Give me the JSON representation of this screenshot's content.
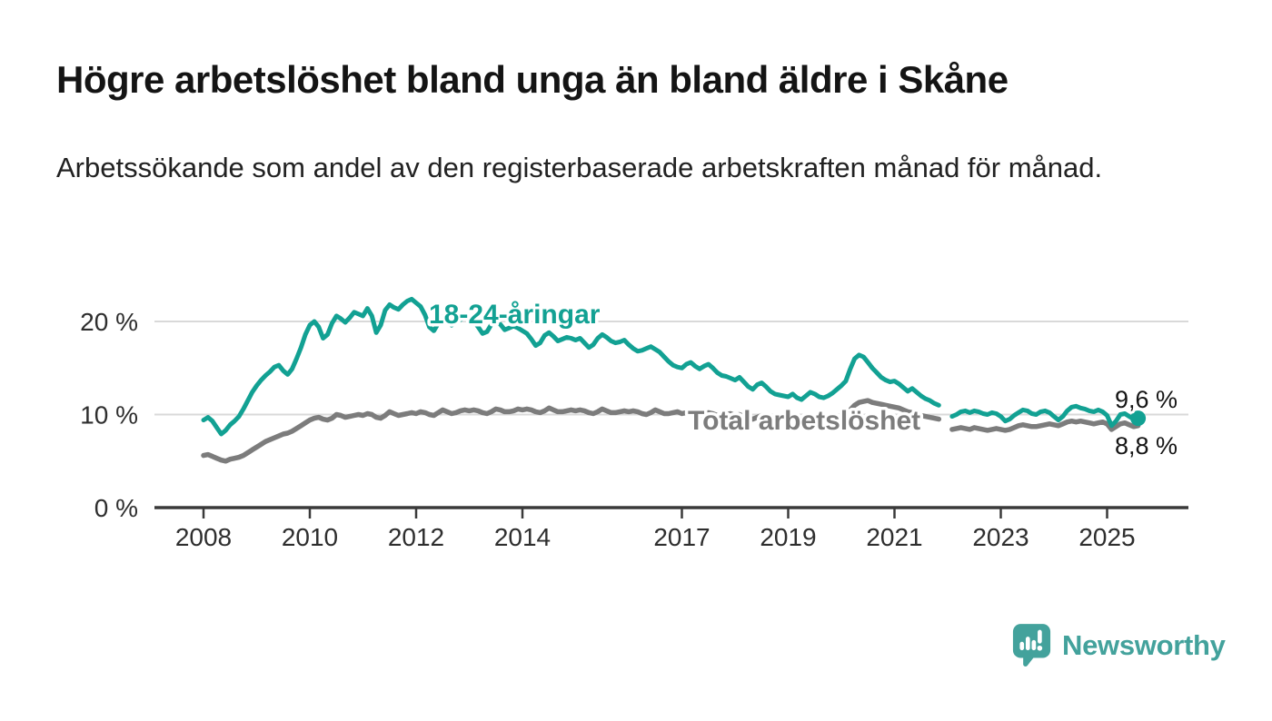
{
  "page": {
    "title": "Högre arbetslöshet bland unga än bland äldre i Skåne",
    "subtitle": "Arbetssökande som andel av den registerbaserade arbetskraften månad för månad."
  },
  "brand": {
    "name": "Newsworthy",
    "logo_icon": "bar-chart-speech-bubble-icon",
    "color": "#43a29c"
  },
  "colors": {
    "youth_line": "#12a193",
    "total_line": "#7c7c7c",
    "axis": "#3a3a3a",
    "gridline": "#d9d9d9",
    "tick_text": "#2e2e2e",
    "end_label_text": "#141414"
  },
  "chart_data": {
    "type": "line",
    "title": "Högre arbetslöshet bland unga än bland äldre i Skåne",
    "subtitle": "Arbetssökande som andel av den registerbaserade arbetskraften månad för månad.",
    "x_unit": "month",
    "x_start": "2008-01",
    "x_end": "2025-08",
    "frequency": "monthly",
    "ylim": [
      0,
      25
    ],
    "grid": true,
    "legend_position": "inline-labels",
    "y_axis": {
      "ticks": [
        {
          "label": "0 %",
          "value": 0
        },
        {
          "label": "10 %",
          "value": 10
        },
        {
          "label": "20 %",
          "value": 20
        }
      ]
    },
    "x_axis": {
      "ticks": [
        {
          "label": "2008",
          "year": 2008
        },
        {
          "label": "2010",
          "year": 2010
        },
        {
          "label": "2012",
          "year": 2012
        },
        {
          "label": "2014",
          "year": 2014
        },
        {
          "label": "2017",
          "year": 2017
        },
        {
          "label": "2019",
          "year": 2019
        },
        {
          "label": "2021",
          "year": 2021
        },
        {
          "label": "2023",
          "year": 2023
        },
        {
          "label": "2025",
          "year": 2025
        }
      ]
    },
    "series": [
      {
        "name": "Total arbetslöshet",
        "color": "#7c7c7c",
        "line_width": 5.5,
        "end_label": "8,8 %",
        "end_dot": false,
        "values": [
          5.6,
          5.7,
          5.5,
          5.3,
          5.1,
          5.0,
          5.2,
          5.3,
          5.4,
          5.6,
          5.9,
          6.2,
          6.5,
          6.8,
          7.1,
          7.3,
          7.5,
          7.7,
          7.9,
          8.0,
          8.2,
          8.5,
          8.8,
          9.1,
          9.4,
          9.6,
          9.7,
          9.5,
          9.4,
          9.6,
          10.0,
          9.9,
          9.7,
          9.8,
          9.9,
          10.0,
          9.9,
          10.1,
          10.0,
          9.7,
          9.6,
          9.9,
          10.3,
          10.1,
          9.9,
          10.0,
          10.1,
          10.2,
          10.1,
          10.3,
          10.2,
          10.0,
          9.9,
          10.2,
          10.5,
          10.3,
          10.1,
          10.2,
          10.4,
          10.5,
          10.4,
          10.5,
          10.4,
          10.2,
          10.1,
          10.3,
          10.6,
          10.5,
          10.3,
          10.3,
          10.4,
          10.6,
          10.5,
          10.6,
          10.5,
          10.3,
          10.2,
          10.4,
          10.7,
          10.5,
          10.3,
          10.3,
          10.4,
          10.5,
          10.4,
          10.5,
          10.4,
          10.2,
          10.1,
          10.3,
          10.6,
          10.4,
          10.2,
          10.2,
          10.3,
          10.4,
          10.3,
          10.4,
          10.3,
          10.1,
          10.0,
          10.2,
          10.5,
          10.3,
          10.1,
          10.1,
          10.2,
          10.3,
          10.1,
          10.2,
          10.1,
          9.9,
          9.8,
          10.0,
          10.2,
          10.1,
          9.9,
          9.9,
          10.0,
          10.1,
          9.9,
          10.0,
          9.8,
          9.6,
          9.5,
          9.7,
          9.9,
          9.8,
          9.6,
          9.5,
          9.6,
          9.7,
          9.5,
          9.6,
          9.4,
          9.3,
          9.2,
          9.4,
          9.6,
          9.5,
          9.4,
          9.5,
          9.6,
          9.8,
          9.9,
          10.0,
          10.5,
          11.0,
          11.3,
          11.4,
          11.5,
          11.3,
          11.2,
          11.1,
          11.0,
          10.9,
          10.8,
          10.7,
          10.5,
          10.3,
          10.2,
          10.0,
          9.9,
          9.8,
          9.7,
          9.6,
          9.5,
          null,
          null,
          8.4,
          8.5,
          8.6,
          8.5,
          8.4,
          8.6,
          8.5,
          8.4,
          8.3,
          8.4,
          8.5,
          8.4,
          8.3,
          8.4,
          8.6,
          8.8,
          8.9,
          8.8,
          8.7,
          8.7,
          8.8,
          8.9,
          9.0,
          8.9,
          8.8,
          9.0,
          9.2,
          9.3,
          9.2,
          9.3,
          9.2,
          9.1,
          9.0,
          9.1,
          9.2,
          9.0,
          8.4,
          8.7,
          9.0,
          9.1,
          8.9,
          8.7,
          8.8
        ]
      },
      {
        "name": "18-24-åringar",
        "color": "#12a193",
        "line_width": 5,
        "end_label": "9,6 %",
        "end_dot": true,
        "values": [
          9.4,
          9.7,
          9.3,
          8.6,
          7.9,
          8.3,
          8.9,
          9.3,
          9.8,
          10.6,
          11.5,
          12.4,
          13.1,
          13.7,
          14.2,
          14.6,
          15.1,
          15.3,
          14.7,
          14.3,
          14.9,
          16.0,
          17.2,
          18.6,
          19.6,
          20.0,
          19.4,
          18.2,
          18.6,
          19.8,
          20.6,
          20.3,
          19.9,
          20.4,
          21.0,
          20.8,
          20.6,
          21.4,
          20.6,
          18.8,
          19.6,
          21.2,
          21.8,
          21.5,
          21.3,
          21.8,
          22.2,
          22.4,
          22.0,
          21.6,
          20.7,
          19.4,
          19.0,
          19.8,
          20.5,
          20.2,
          19.6,
          19.9,
          20.2,
          20.4,
          20.3,
          20.0,
          19.4,
          18.7,
          18.9,
          19.7,
          20.1,
          19.7,
          19.1,
          19.3,
          19.5,
          19.3,
          19.0,
          18.7,
          18.1,
          17.4,
          17.7,
          18.5,
          18.8,
          18.4,
          17.9,
          18.1,
          18.3,
          18.2,
          18.0,
          18.2,
          17.7,
          17.2,
          17.5,
          18.2,
          18.6,
          18.3,
          17.9,
          17.7,
          17.8,
          18.0,
          17.5,
          17.1,
          16.8,
          16.9,
          17.1,
          17.3,
          17.0,
          16.7,
          16.2,
          15.7,
          15.3,
          15.1,
          15.0,
          15.4,
          15.6,
          15.2,
          14.9,
          15.2,
          15.4,
          15.0,
          14.5,
          14.2,
          14.1,
          13.9,
          13.7,
          14.0,
          13.5,
          13.0,
          12.7,
          13.2,
          13.4,
          13.0,
          12.5,
          12.2,
          12.1,
          12.0,
          11.9,
          12.2,
          11.8,
          11.6,
          12.0,
          12.4,
          12.2,
          11.9,
          11.8,
          12.0,
          12.3,
          12.7,
          13.1,
          13.6,
          14.9,
          16.0,
          16.4,
          16.2,
          15.6,
          15.0,
          14.5,
          14.0,
          13.7,
          13.5,
          13.6,
          13.3,
          12.9,
          12.5,
          12.8,
          12.4,
          12.0,
          11.7,
          11.5,
          11.2,
          11.0,
          null,
          null,
          9.8,
          10.0,
          10.3,
          10.4,
          10.2,
          10.4,
          10.3,
          10.1,
          10.0,
          10.2,
          10.1,
          9.8,
          9.3,
          9.5,
          9.9,
          10.2,
          10.5,
          10.4,
          10.1,
          10.0,
          10.3,
          10.4,
          10.2,
          9.8,
          9.4,
          9.8,
          10.4,
          10.8,
          10.9,
          10.7,
          10.6,
          10.4,
          10.3,
          10.5,
          10.3,
          9.9,
          8.8,
          9.3,
          10.0,
          10.1,
          9.8,
          9.5,
          9.6
        ]
      }
    ]
  }
}
